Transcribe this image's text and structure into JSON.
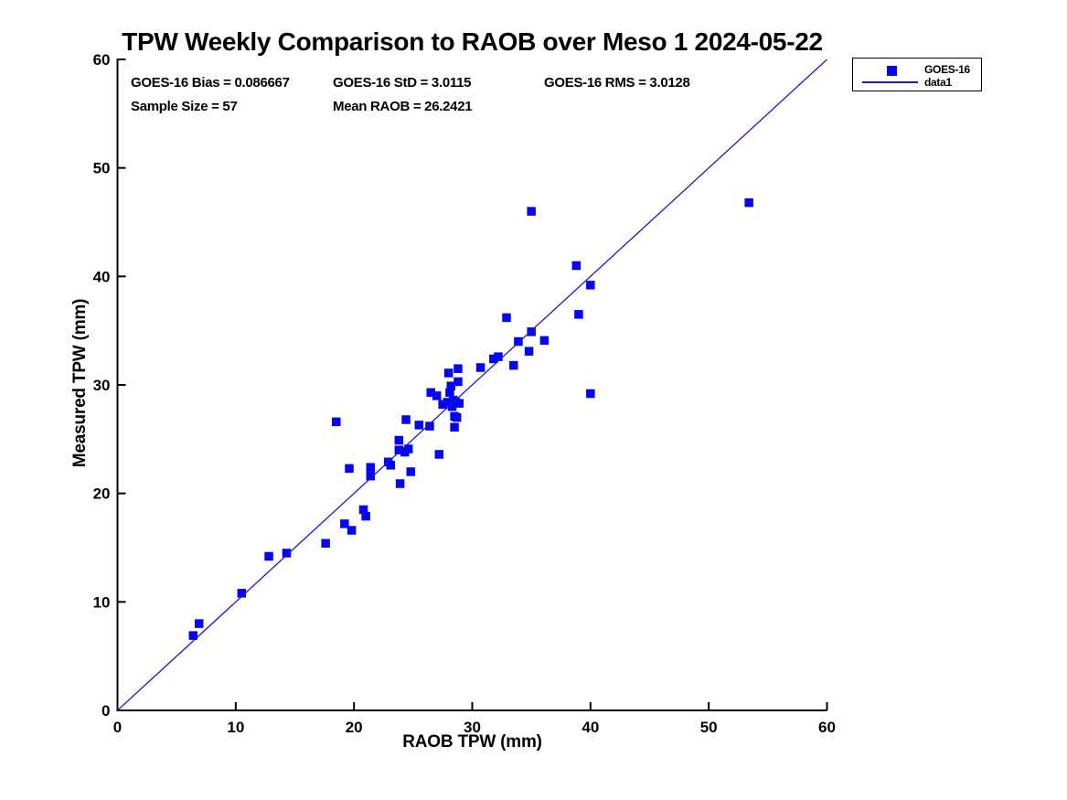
{
  "title": "TPW Weekly Comparison to RAOB over Meso 1 2024-05-22",
  "stats": {
    "bias": "GOES-16 Bias = 0.086667",
    "std": "GOES-16 StD = 3.0115",
    "rms": "GOES-16 RMS = 3.0128",
    "sample_size": "Sample Size = 57",
    "mean_raob": "Mean RAOB = 26.2421"
  },
  "legend": {
    "marker_label": "GOES-16",
    "line_label": "data1"
  },
  "colors": {
    "marker": "#0505f5",
    "line": "#1a1ac8",
    "axis": "#000000",
    "text": "#000000",
    "background": "#ffffff"
  },
  "chart_data": {
    "type": "scatter",
    "title": "TPW Weekly Comparison to RAOB over Meso 1 2024-05-22",
    "xlabel": "RAOB TPW (mm)",
    "ylabel": "Measured TPW (mm)",
    "xlim": [
      0,
      60
    ],
    "ylim": [
      0,
      60
    ],
    "xticks": [
      0,
      10,
      20,
      30,
      40,
      50,
      60
    ],
    "yticks": [
      0,
      10,
      20,
      30,
      40,
      50,
      60
    ],
    "grid": false,
    "legend_position": "top-right-outside",
    "annotations": [
      "GOES-16 Bias = 0.086667",
      "GOES-16 StD = 3.0115",
      "GOES-16 RMS = 3.0128",
      "Sample Size = 57",
      "Mean RAOB = 26.2421"
    ],
    "series": [
      {
        "name": "GOES-16",
        "type": "scatter",
        "marker": "square",
        "points": [
          [
            6.4,
            6.9
          ],
          [
            6.9,
            8.0
          ],
          [
            10.5,
            10.8
          ],
          [
            12.8,
            14.2
          ],
          [
            14.3,
            14.5
          ],
          [
            17.6,
            15.4
          ],
          [
            19.8,
            16.6
          ],
          [
            19.2,
            17.2
          ],
          [
            21.0,
            17.9
          ],
          [
            20.8,
            18.5
          ],
          [
            23.9,
            20.9
          ],
          [
            21.4,
            21.6
          ],
          [
            24.8,
            22.0
          ],
          [
            19.6,
            22.3
          ],
          [
            21.4,
            22.4
          ],
          [
            23.1,
            22.6
          ],
          [
            22.9,
            22.9
          ],
          [
            27.2,
            23.6
          ],
          [
            24.3,
            23.8
          ],
          [
            23.8,
            24.0
          ],
          [
            24.6,
            24.1
          ],
          [
            23.8,
            24.9
          ],
          [
            24.4,
            26.8
          ],
          [
            25.5,
            26.3
          ],
          [
            26.4,
            26.2
          ],
          [
            28.5,
            26.1
          ],
          [
            28.5,
            27.1
          ],
          [
            28.7,
            27.0
          ],
          [
            18.5,
            26.6
          ],
          [
            27.5,
            28.2
          ],
          [
            27.9,
            28.4
          ],
          [
            28.3,
            28.0
          ],
          [
            28.6,
            28.4
          ],
          [
            28.9,
            28.3
          ],
          [
            28.4,
            28.6
          ],
          [
            26.5,
            29.3
          ],
          [
            27.0,
            29.0
          ],
          [
            28.1,
            29.3
          ],
          [
            28.2,
            29.9
          ],
          [
            28.8,
            30.3
          ],
          [
            28.0,
            31.1
          ],
          [
            28.8,
            31.5
          ],
          [
            30.7,
            31.6
          ],
          [
            33.5,
            31.8
          ],
          [
            31.8,
            32.4
          ],
          [
            32.2,
            32.6
          ],
          [
            34.8,
            33.1
          ],
          [
            33.9,
            34.0
          ],
          [
            36.1,
            34.1
          ],
          [
            35.0,
            34.9
          ],
          [
            32.9,
            36.2
          ],
          [
            39.0,
            36.5
          ],
          [
            38.8,
            41.0
          ],
          [
            40.0,
            39.2
          ],
          [
            35.0,
            46.0
          ],
          [
            53.4,
            46.8
          ],
          [
            40.0,
            29.2
          ]
        ]
      },
      {
        "name": "data1",
        "type": "line",
        "points": [
          [
            0,
            0
          ],
          [
            60,
            60
          ]
        ]
      }
    ]
  },
  "plot_geометry_note": ""
}
